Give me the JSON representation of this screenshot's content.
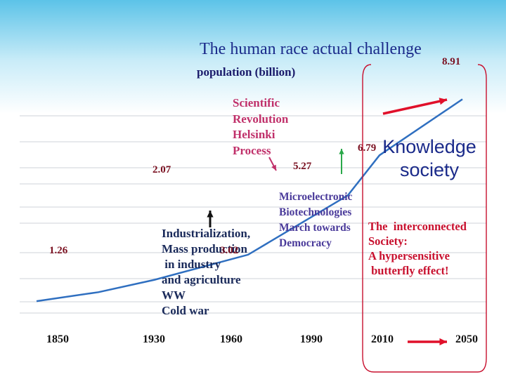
{
  "chart_data": {
    "type": "line",
    "title": "The human race actual challenge",
    "ylabel": "population (billion)",
    "x_ticks": [
      "1850",
      "1930",
      "1960",
      "1990",
      "2010",
      "2050"
    ],
    "series": [
      {
        "points": [
          {
            "x": 1850,
            "y": 1.26
          },
          {
            "x": 1900,
            "y": 1.6
          },
          {
            "x": 1930,
            "y": 2.07
          },
          {
            "x": 1960,
            "y": 3.02
          },
          {
            "x": 1990,
            "y": 5.27
          },
          {
            "x": 2010,
            "y": 6.79
          },
          {
            "x": 2050,
            "y": 8.91
          }
        ]
      }
    ],
    "data_labels": [
      {
        "x": 1850,
        "y": 1.26,
        "label": "1.26"
      },
      {
        "x": 1930,
        "y": 2.07,
        "label": "2.07"
      },
      {
        "x": 1960,
        "y": 3.02,
        "label": "3.02"
      },
      {
        "x": 1990,
        "y": 5.27,
        "label": "5.27"
      },
      {
        "x": 2010,
        "y": 6.79,
        "label": "6.79"
      },
      {
        "x": 2050,
        "y": 8.91,
        "label": "8.91"
      }
    ],
    "annotations": {
      "scientific": [
        "Scientific",
        "Revolution",
        "Helsinki",
        "Process"
      ],
      "micro": [
        "Microelectronic",
        "Biotechnologies",
        "March towards",
        "Democracy"
      ],
      "industrial": [
        "Industrialization,",
        "Mass production",
        " in industry",
        "and agriculture",
        "WW",
        "Cold war"
      ],
      "knowledge": "Knowledge society",
      "interconnected": [
        "The  interconnected",
        "Society:",
        "A hypersensitive",
        " butterfly effect!"
      ]
    },
    "grid": true,
    "colors": {
      "line": "#2f6fc0",
      "arrow": "#e0102a",
      "green_arrow": "#2aa84a",
      "bracket": "#c8102e",
      "title": "#1a2a8a"
    }
  }
}
